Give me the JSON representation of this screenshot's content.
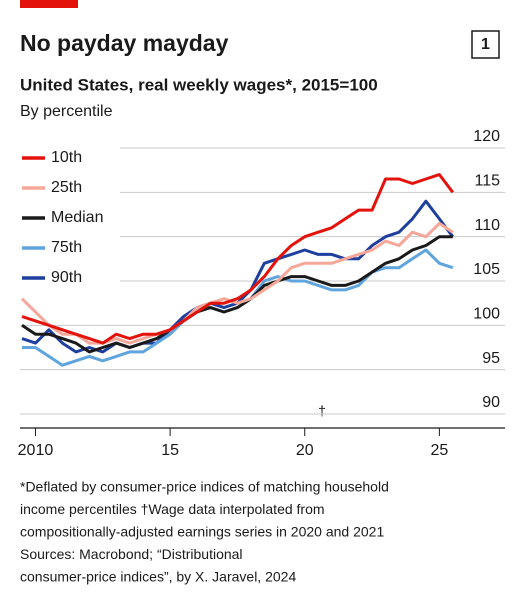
{
  "header": {
    "title": "No payday mayday",
    "number": "1"
  },
  "chart_data": {
    "type": "line",
    "title": "United States, real weekly wages*, 2015=100",
    "subtitle": "By percentile",
    "annotation": "†",
    "x": [
      2009.5,
      2010,
      2010.5,
      2011,
      2011.5,
      2012,
      2012.5,
      2013,
      2013.5,
      2014,
      2014.5,
      2015,
      2015.5,
      2016,
      2016.5,
      2017,
      2017.5,
      2018,
      2018.5,
      2019,
      2019.5,
      2020,
      2020.5,
      2021,
      2021.5,
      2022,
      2022.5,
      2023,
      2023.5,
      2024,
      2024.5,
      2025,
      2025.5
    ],
    "series": [
      {
        "name": "10th",
        "color": "#e3120b",
        "values": [
          101,
          100.5,
          100,
          99.5,
          99,
          98.5,
          98,
          99,
          98.5,
          99,
          99,
          99.5,
          100.5,
          101.5,
          102.5,
          102.5,
          103,
          104,
          105.5,
          107.5,
          109,
          110,
          110.5,
          111,
          112,
          113,
          113,
          116.5,
          116.5,
          116,
          116.5,
          117,
          115
        ]
      },
      {
        "name": "25th",
        "color": "#f5a89a",
        "values": [
          103,
          101.5,
          100,
          99,
          99,
          98,
          98,
          98.5,
          98,
          98.5,
          99,
          99.5,
          100.5,
          102,
          102.5,
          103,
          102.5,
          103,
          104,
          105,
          106.5,
          107,
          107,
          107,
          107.5,
          108,
          108.5,
          109.5,
          109,
          110.5,
          110,
          111.5,
          110.5
        ]
      },
      {
        "name": "Median",
        "color": "#1a1a1a",
        "values": [
          100,
          99,
          99,
          98.5,
          98,
          97,
          97.5,
          98,
          97.5,
          98,
          98.5,
          99.5,
          100.5,
          101.5,
          102,
          101.5,
          102,
          103,
          104.5,
          105,
          105.5,
          105.5,
          105,
          104.5,
          104.5,
          105,
          106,
          107,
          107.5,
          108.5,
          109,
          110,
          110
        ]
      },
      {
        "name": "75th",
        "color": "#5fa4dc",
        "values": [
          97.5,
          97.5,
          96.5,
          95.5,
          96,
          96.5,
          96,
          96.5,
          97,
          97,
          98,
          99,
          100.5,
          102,
          102,
          101.5,
          102,
          103,
          105,
          105.5,
          105,
          105,
          104.5,
          104,
          104,
          104.5,
          106,
          106.5,
          106.5,
          107.5,
          108.5,
          107,
          106.5
        ]
      },
      {
        "name": "90th",
        "color": "#1f3f9e",
        "values": [
          98.5,
          98,
          99.5,
          98,
          97,
          97.5,
          97,
          98,
          97.5,
          98,
          98,
          99.5,
          101,
          102,
          102.5,
          102,
          102.5,
          104,
          107,
          107.5,
          108,
          108.5,
          108,
          108,
          107.5,
          107.5,
          109,
          110,
          110.5,
          112,
          114,
          112,
          110
        ]
      }
    ],
    "xlim": [
      2009.5,
      2027.4
    ],
    "xticks": [
      2010,
      {
        "value": 2015,
        "label": "15"
      },
      {
        "value": 2020,
        "label": "20"
      },
      {
        "value": 2025,
        "label": "25"
      }
    ],
    "ylim": [
      90,
      120
    ],
    "yticks": [
      90,
      95,
      100,
      105,
      110,
      115,
      120
    ],
    "grid": true,
    "legend": "top-left",
    "notes": [
      "*Deflated by consumer-price indices of matching household",
      "income percentiles    †Wage data interpolated from",
      "compositionally-adjusted earnings series in 2020 and 2021",
      "Sources: Macrobond; “Distributional",
      "consumer-price indices”, by X. Jaravel, 2024"
    ]
  }
}
